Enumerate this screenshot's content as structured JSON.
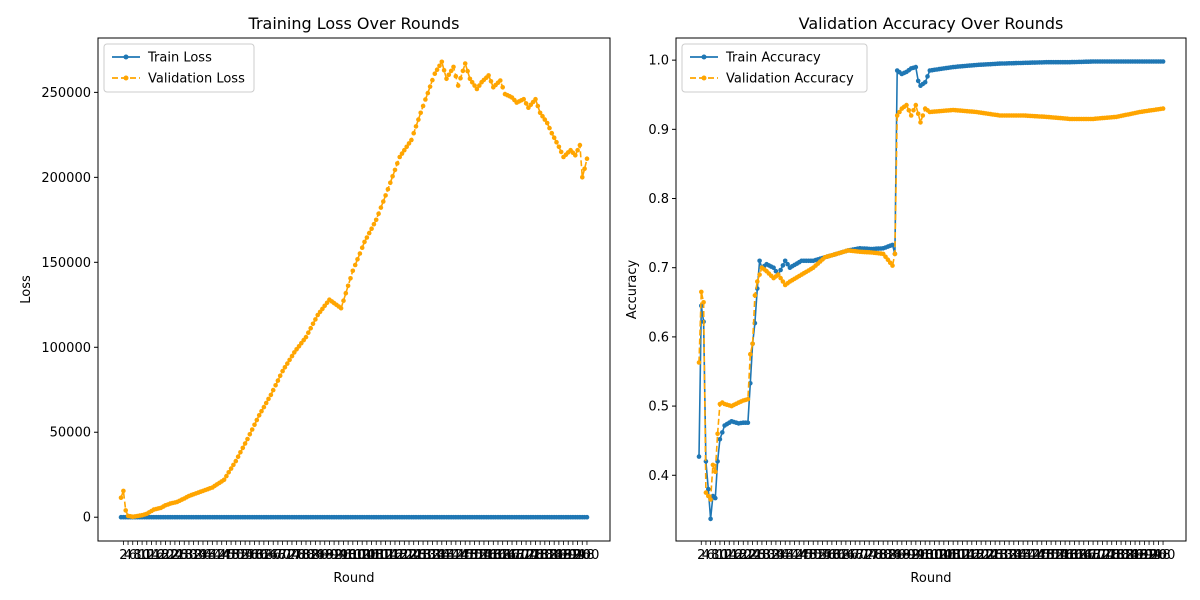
{
  "chart_data": [
    {
      "type": "line",
      "title": "Training Loss Over Rounds",
      "xlabel": "Round",
      "ylabel": "Loss",
      "xlim": [
        1,
        200
      ],
      "ylim": [
        -14000,
        282000
      ],
      "yticks": [
        0,
        50000,
        100000,
        150000,
        200000,
        250000
      ],
      "ytick_labels": [
        "0",
        "50000",
        "100000",
        "150000",
        "200000",
        "250000"
      ],
      "xtick_note": "tick labels 2,4,6,...,200 printed every 2 rounds and overlapping",
      "grid": false,
      "legend_position": "top-left",
      "series": [
        {
          "name": "Train Loss",
          "color": "#1f77b4",
          "style": "solid",
          "marker": "circle",
          "x": [
            1,
            200
          ],
          "y": [
            20,
            20
          ]
        },
        {
          "name": "Validation Loss",
          "color": "#ffa500",
          "style": "dashed",
          "marker": "circle",
          "x": [
            1,
            2,
            3,
            4,
            6,
            8,
            10,
            12,
            15,
            18,
            20,
            22,
            25,
            28,
            30,
            33,
            36,
            40,
            45,
            50,
            55,
            60,
            65,
            70,
            75,
            80,
            85,
            90,
            95,
            100,
            105,
            110,
            115,
            120,
            125,
            130,
            135,
            138,
            140,
            143,
            145,
            148,
            150,
            153,
            155,
            158,
            160,
            163,
            165,
            168,
            170,
            173,
            175,
            178,
            180,
            183,
            185,
            188,
            190,
            193,
            195,
            197,
            198,
            199,
            200
          ],
          "y": [
            11500,
            15500,
            4000,
            800,
            300,
            700,
            1200,
            2000,
            4500,
            5500,
            7000,
            8000,
            9000,
            11000,
            12500,
            14000,
            15500,
            17500,
            22000,
            33000,
            46000,
            60000,
            72000,
            86000,
            97000,
            106000,
            119000,
            128000,
            123000,
            145000,
            162000,
            175000,
            193000,
            212000,
            222000,
            242000,
            261000,
            268000,
            258000,
            265000,
            254000,
            267000,
            258000,
            252000,
            256000,
            260000,
            253000,
            257000,
            249000,
            247000,
            244000,
            246000,
            241000,
            246000,
            238000,
            232000,
            226000,
            218000,
            212000,
            216000,
            213000,
            219000,
            200000,
            205000,
            211000
          ]
        }
      ]
    },
    {
      "type": "line",
      "title": "Validation Accuracy Over Rounds",
      "xlabel": "Round",
      "ylabel": "Accuracy",
      "xlim": [
        1,
        200
      ],
      "ylim": [
        0.305,
        1.032
      ],
      "yticks": [
        0.4,
        0.5,
        0.6,
        0.7,
        0.8,
        0.9,
        1.0
      ],
      "ytick_labels": [
        "0.4",
        "0.5",
        "0.6",
        "0.7",
        "0.8",
        "0.9",
        "1.0"
      ],
      "xtick_note": "tick labels 2,4,6,...,200 printed every 2 rounds and overlapping",
      "grid": false,
      "legend_position": "top-left",
      "series": [
        {
          "name": "Train Accuracy",
          "color": "#1f77b4",
          "style": "solid",
          "marker": "circle",
          "x": [
            1,
            2,
            3,
            4,
            5,
            6,
            7,
            8,
            9,
            10,
            12,
            15,
            18,
            20,
            22,
            24,
            25,
            26,
            27,
            28,
            30,
            33,
            35,
            38,
            40,
            45,
            50,
            55,
            60,
            65,
            70,
            75,
            80,
            84,
            85,
            86,
            88,
            90,
            92,
            94,
            95,
            96,
            98,
            100,
            110,
            120,
            130,
            140,
            150,
            160,
            170,
            180,
            190,
            200
          ],
          "y": [
            0.427,
            0.645,
            0.622,
            0.42,
            0.38,
            0.337,
            0.37,
            0.367,
            0.42,
            0.452,
            0.472,
            0.478,
            0.475,
            0.476,
            0.476,
            0.59,
            0.62,
            0.67,
            0.71,
            0.7,
            0.705,
            0.7,
            0.69,
            0.71,
            0.7,
            0.71,
            0.71,
            0.715,
            0.72,
            0.725,
            0.728,
            0.727,
            0.728,
            0.733,
            0.72,
            0.985,
            0.98,
            0.983,
            0.988,
            0.99,
            0.97,
            0.963,
            0.968,
            0.985,
            0.99,
            0.993,
            0.995,
            0.996,
            0.997,
            0.997,
            0.998,
            0.998,
            0.998,
            0.998
          ]
        },
        {
          "name": "Validation Accuracy",
          "color": "#ffa500",
          "style": "dashed",
          "marker": "circle",
          "x": [
            1,
            2,
            3,
            4,
            5,
            6,
            7,
            8,
            9,
            10,
            11,
            12,
            15,
            18,
            20,
            22,
            23,
            24,
            25,
            26,
            27,
            28,
            30,
            33,
            35,
            38,
            40,
            45,
            50,
            55,
            60,
            65,
            70,
            75,
            80,
            84,
            85,
            86,
            88,
            90,
            92,
            94,
            96,
            98,
            100,
            110,
            120,
            130,
            140,
            150,
            160,
            170,
            180,
            190,
            200
          ],
          "y": [
            0.563,
            0.665,
            0.65,
            0.375,
            0.37,
            0.365,
            0.415,
            0.405,
            0.46,
            0.503,
            0.505,
            0.503,
            0.5,
            0.505,
            0.508,
            0.51,
            0.575,
            0.59,
            0.66,
            0.68,
            0.69,
            0.7,
            0.695,
            0.685,
            0.69,
            0.675,
            0.68,
            0.69,
            0.7,
            0.715,
            0.72,
            0.725,
            0.723,
            0.722,
            0.72,
            0.703,
            0.72,
            0.92,
            0.93,
            0.935,
            0.92,
            0.935,
            0.91,
            0.93,
            0.925,
            0.928,
            0.925,
            0.92,
            0.92,
            0.918,
            0.915,
            0.915,
            0.918,
            0.925,
            0.93
          ]
        }
      ]
    }
  ]
}
